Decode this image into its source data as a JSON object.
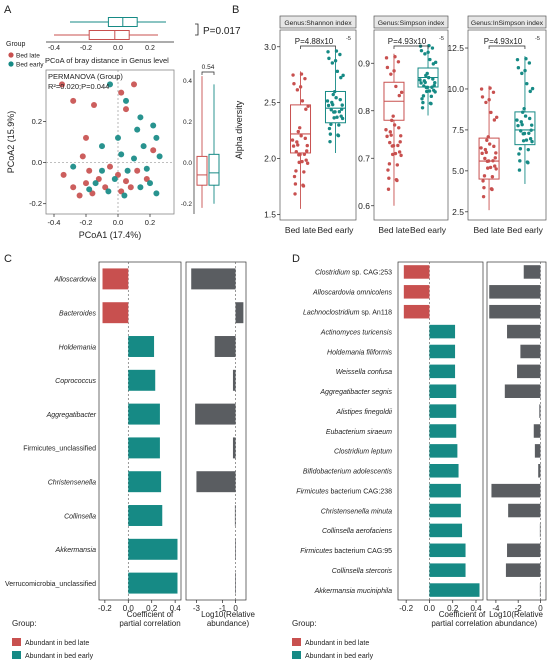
{
  "colors": {
    "late": "#c8504f",
    "early": "#168a85",
    "grey": "#5a5d61",
    "axis": "#222222"
  },
  "panel_labels": {
    "a": "A",
    "b": "B",
    "c": "C",
    "d": "D"
  },
  "panelA": {
    "legend_title": "Group",
    "legend_items": [
      "Bed late",
      "Bed early"
    ],
    "subtitle": "PCoA of bray distance in Genus level",
    "top_p": "P=0.017",
    "top_ticks": [
      "-0.4",
      "-0.2",
      "0.0",
      "0.2"
    ],
    "permanova": "PERMANOVA (Group)",
    "r2p": "R²=0.020;P=0.044",
    "xlabel": "PCoA1 (17.4%)",
    "ylabel": "PCoA2 (15.9%)",
    "right_p": "0.54",
    "x_ticks": [
      "-0.4",
      "-0.2",
      "0.0",
      "0.2"
    ],
    "y_ticks": [
      "0.2",
      "0.0",
      "-0.2"
    ],
    "right_ticks": [
      "0.4",
      "0.2",
      "0.0",
      "-0.2"
    ]
  },
  "panelB": {
    "ylabel": "Alpha diversity",
    "group_labels": [
      "Bed late",
      "Bed early"
    ],
    "facets": [
      {
        "title": "Genus:Shannon index",
        "p": "P=4.88x10",
        "p_exp": "-5",
        "ticks": [
          "3.0",
          "2.5",
          "2.0",
          "1.5"
        ]
      },
      {
        "title": "Genus:Simpson index",
        "p": "P=4.93x10",
        "p_exp": "-5",
        "ticks": [
          "0.9",
          "0.8",
          "0.7",
          "0.6"
        ]
      },
      {
        "title": "Genus:InSimpson index",
        "p": "P=4.93x10",
        "p_exp": "-5",
        "ticks": [
          "12.5",
          "10.0",
          "7.5",
          "5.0",
          "2.5"
        ]
      }
    ]
  },
  "panelC": {
    "xlabel1": "Coefficient of partial correlation",
    "xlabel2": "Log10(Relative abundance)",
    "ticks1": [
      "-0.2",
      "0.0",
      "0.2",
      "0.4"
    ],
    "ticks2": [
      "-3",
      "-1",
      "0"
    ],
    "legend_title": "Group:",
    "legend_items": [
      "Abundant in bed late",
      "Abundant in bed early"
    ]
  },
  "panelD": {
    "xlabel1": "Coefficient of partial correlation",
    "xlabel2": "Log10(Relative abundance)",
    "ticks1": [
      "-0.2",
      "0.0",
      "0.2",
      "0.4"
    ],
    "ticks2": [
      "-4",
      "-2",
      "0"
    ],
    "legend_title": "Group:",
    "legend_items": [
      "Abundant in bed late",
      "Abundant in bed early"
    ]
  },
  "chart_data": [
    {
      "type": "scatter",
      "title": "PCoA of bray distance in Genus level",
      "xlabel": "PCoA1 (17.4%)",
      "ylabel": "PCoA2 (15.9%)",
      "xlim": [
        -0.45,
        0.35
      ],
      "ylim": [
        -0.25,
        0.45
      ],
      "series": [
        {
          "name": "Bed late",
          "points": [
            [
              -0.35,
              0.38
            ],
            [
              -0.28,
              0.3
            ],
            [
              -0.2,
              0.12
            ],
            [
              -0.15,
              0.28
            ],
            [
              0.02,
              0.34
            ],
            [
              0.05,
              0.26
            ],
            [
              0.1,
              0.38
            ],
            [
              -0.34,
              -0.06
            ],
            [
              -0.28,
              -0.12
            ],
            [
              -0.24,
              -0.16
            ],
            [
              -0.2,
              -0.1
            ],
            [
              -0.16,
              -0.15
            ],
            [
              -0.12,
              -0.08
            ],
            [
              -0.08,
              -0.12
            ],
            [
              -0.05,
              -0.02
            ],
            [
              0.0,
              -0.06
            ],
            [
              0.02,
              -0.14
            ],
            [
              0.05,
              -0.09
            ],
            [
              0.08,
              -0.12
            ],
            [
              0.12,
              -0.04
            ],
            [
              -0.18,
              -0.04
            ],
            [
              -0.22,
              0.03
            ],
            [
              0.18,
              -0.08
            ],
            [
              0.22,
              0.06
            ]
          ]
        },
        {
          "name": "Bed early",
          "points": [
            [
              -0.05,
              0.38
            ],
            [
              0.05,
              0.3
            ],
            [
              0.14,
              0.22
            ],
            [
              0.22,
              0.18
            ],
            [
              0.24,
              0.12
            ],
            [
              0.16,
              0.08
            ],
            [
              0.12,
              0.16
            ],
            [
              0.26,
              0.03
            ],
            [
              0.18,
              -0.03
            ],
            [
              0.1,
              0.02
            ],
            [
              0.06,
              -0.04
            ],
            [
              0.02,
              0.04
            ],
            [
              -0.02,
              -0.08
            ],
            [
              -0.1,
              -0.04
            ],
            [
              -0.14,
              -0.1
            ],
            [
              -0.18,
              -0.13
            ],
            [
              -0.06,
              -0.14
            ],
            [
              0.04,
              -0.16
            ],
            [
              0.14,
              -0.12
            ],
            [
              0.2,
              -0.1
            ],
            [
              0.24,
              -0.15
            ],
            [
              -0.28,
              -0.02
            ],
            [
              -0.1,
              0.08
            ],
            [
              0.0,
              0.12
            ]
          ]
        }
      ]
    },
    {
      "type": "box",
      "title": "Genus:Shannon index",
      "ylabel": "Alpha diversity",
      "categories": [
        "Bed late",
        "Bed early"
      ],
      "ylim": [
        1.45,
        3.15
      ],
      "series": [
        {
          "name": "Bed late",
          "min": 1.55,
          "q1": 2.05,
          "median": 2.22,
          "q3": 2.48,
          "max": 2.78
        },
        {
          "name": "Bed early",
          "min": 2.05,
          "q1": 2.32,
          "median": 2.45,
          "q3": 2.6,
          "max": 2.98
        }
      ]
    },
    {
      "type": "box",
      "title": "Genus:Simpson index",
      "categories": [
        "Bed late",
        "Bed early"
      ],
      "ylim": [
        0.57,
        0.97
      ],
      "series": [
        {
          "name": "Bed late",
          "min": 0.6,
          "q1": 0.78,
          "median": 0.82,
          "q3": 0.86,
          "max": 0.92
        },
        {
          "name": "Bed early",
          "min": 0.79,
          "q1": 0.85,
          "median": 0.87,
          "q3": 0.89,
          "max": 0.94
        }
      ]
    },
    {
      "type": "box",
      "title": "Genus:InSimpson index",
      "categories": [
        "Bed late",
        "Bed early"
      ],
      "ylim": [
        2.0,
        13.6
      ],
      "series": [
        {
          "name": "Bed late",
          "min": 2.6,
          "q1": 4.5,
          "median": 5.6,
          "q3": 7.0,
          "max": 10.2
        },
        {
          "name": "Bed early",
          "min": 4.2,
          "q1": 6.6,
          "median": 7.5,
          "q3": 8.6,
          "max": 12.0
        }
      ]
    },
    {
      "type": "bar",
      "title": "",
      "xlabel": "Coefficient of partial correlation",
      "xlim": [
        -0.25,
        0.45
      ],
      "categories": [
        {
          "label": "Alloscardovia",
          "italic": true
        },
        {
          "label": "Bacteroides",
          "italic": true
        },
        {
          "label": "Holdemania",
          "italic": true
        },
        {
          "label": "Coprococcus",
          "italic": true
        },
        {
          "label": "Aggregatibacter",
          "italic": true
        },
        {
          "label": "Firmicutes_unclassified",
          "italic": false
        },
        {
          "label": "Christensenella",
          "italic": true
        },
        {
          "label": "Collinsella",
          "italic": true
        },
        {
          "label": "Akkermansia",
          "italic": true
        },
        {
          "label": "Verrucomicrobia_unclassified",
          "italic": false
        }
      ],
      "values": [
        -0.22,
        -0.22,
        0.22,
        0.23,
        0.27,
        0.27,
        0.28,
        0.29,
        0.42,
        0.42
      ],
      "log_abundance": [
        -3.4,
        0.6,
        -1.6,
        -0.2,
        -3.1,
        -0.2,
        -3.0,
        -0.05,
        -0.02,
        -0.02
      ],
      "log_xlim": [
        -3.8,
        0.8
      ]
    },
    {
      "type": "bar",
      "title": "",
      "xlabel": "Coefficient of partial correlation",
      "xlim": [
        -0.27,
        0.46
      ],
      "categories": [
        {
          "parts": [
            [
              "Clostridium",
              true
            ],
            [
              " sp. CAG:253",
              false
            ]
          ]
        },
        {
          "parts": [
            [
              "Alloscardovia omnicolens",
              true
            ]
          ]
        },
        {
          "parts": [
            [
              "Lachnoclostridium",
              true
            ],
            [
              " sp. An118",
              false
            ]
          ]
        },
        {
          "parts": [
            [
              "Actinomyces turicensis",
              true
            ]
          ]
        },
        {
          "parts": [
            [
              "Holdemania filiformis",
              true
            ]
          ]
        },
        {
          "parts": [
            [
              "Weissella confusa",
              true
            ]
          ]
        },
        {
          "parts": [
            [
              "Aggregatibacter segnis",
              true
            ]
          ]
        },
        {
          "parts": [
            [
              "Alistipes finegoldii",
              true
            ]
          ]
        },
        {
          "parts": [
            [
              "Eubacterium siraeum",
              true
            ]
          ]
        },
        {
          "parts": [
            [
              "Clostridium leptum",
              true
            ]
          ]
        },
        {
          "parts": [
            [
              "Bifidobacterium adolescentis",
              true
            ]
          ]
        },
        {
          "parts": [
            [
              "Firmicutes",
              true
            ],
            [
              " bacterium CAG:238",
              false
            ]
          ]
        },
        {
          "parts": [
            [
              "Christensenella minuta",
              true
            ]
          ]
        },
        {
          "parts": [
            [
              "Collinsella aerofaciens",
              true
            ]
          ]
        },
        {
          "parts": [
            [
              "Firmicutes",
              true
            ],
            [
              " bacterium CAG:95",
              false
            ]
          ]
        },
        {
          "parts": [
            [
              "Collinsella stercoris",
              true
            ]
          ]
        },
        {
          "parts": [
            [
              "Akkermansia muciniphila",
              true
            ]
          ]
        }
      ],
      "values": [
        -0.22,
        -0.22,
        -0.22,
        0.22,
        0.22,
        0.22,
        0.23,
        0.23,
        0.23,
        0.24,
        0.25,
        0.27,
        0.27,
        0.28,
        0.31,
        0.31,
        0.43
      ],
      "log_abundance": [
        -1.5,
        -4.6,
        -4.6,
        -3.0,
        -1.8,
        -2.1,
        -3.2,
        -0.1,
        -0.6,
        -0.5,
        -0.2,
        -4.4,
        -2.9,
        -0.05,
        -3.0,
        -3.1,
        -0.05
      ],
      "log_xlim": [
        -4.8,
        0.5
      ]
    }
  ]
}
